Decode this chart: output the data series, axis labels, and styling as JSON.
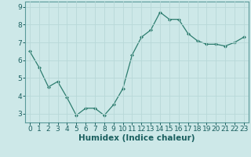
{
  "x": [
    0,
    1,
    2,
    3,
    4,
    5,
    6,
    7,
    8,
    9,
    10,
    11,
    12,
    13,
    14,
    15,
    16,
    17,
    18,
    19,
    20,
    21,
    22,
    23
  ],
  "y": [
    6.5,
    5.6,
    4.5,
    4.8,
    3.9,
    2.9,
    3.3,
    3.3,
    2.9,
    3.5,
    4.4,
    6.3,
    7.3,
    7.7,
    8.7,
    8.3,
    8.3,
    7.5,
    7.1,
    6.9,
    6.9,
    6.8,
    7.0,
    7.3
  ],
  "xlabel": "Humidex (Indice chaleur)",
  "ylim": [
    2.5,
    9.3
  ],
  "xlim": [
    -0.5,
    23.5
  ],
  "yticks": [
    3,
    4,
    5,
    6,
    7,
    8,
    9
  ],
  "xticks": [
    0,
    1,
    2,
    3,
    4,
    5,
    6,
    7,
    8,
    9,
    10,
    11,
    12,
    13,
    14,
    15,
    16,
    17,
    18,
    19,
    20,
    21,
    22,
    23
  ],
  "line_color": "#2d7d6f",
  "marker_color": "#2d7d6f",
  "bg_color": "#cde8e8",
  "grid_color": "#b8d8d8",
  "axis_bg": "#cde8e8",
  "xlabel_fontsize": 7.5,
  "tick_fontsize": 6.5
}
